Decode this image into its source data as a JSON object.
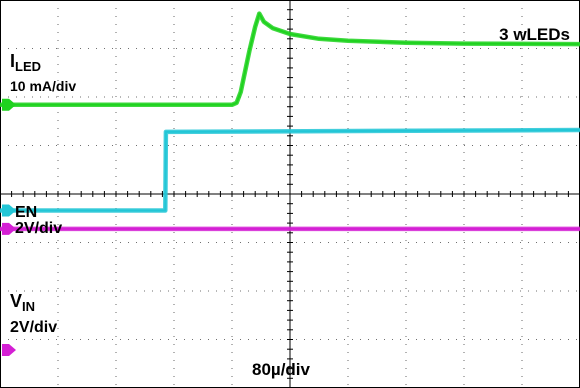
{
  "chart_data": {
    "type": "line",
    "x_unit": "divisions",
    "xlim": [
      0,
      10
    ],
    "ylim": [
      -4,
      4
    ],
    "time_per_div": "80µ/div",
    "grid": true,
    "colors": {
      "iled": "#1fd21f",
      "en": "#22c6d6",
      "vin": "#d41fd4",
      "grid": "#000000"
    },
    "annotations": {
      "load": "3 wLEDs",
      "timebase": "80µ/div"
    },
    "series": [
      {
        "key": "iled",
        "label_main": "I",
        "label_sub": "LED",
        "scale": "10 mA/div",
        "points": [
          [
            0,
            1.84
          ],
          [
            4.0,
            1.84
          ],
          [
            4.08,
            1.88
          ],
          [
            4.15,
            2.1
          ],
          [
            4.3,
            2.95
          ],
          [
            4.4,
            3.45
          ],
          [
            4.47,
            3.72
          ],
          [
            4.55,
            3.55
          ],
          [
            4.7,
            3.42
          ],
          [
            5.0,
            3.3
          ],
          [
            5.5,
            3.2
          ],
          [
            6.0,
            3.16
          ],
          [
            7.0,
            3.12
          ],
          [
            8.0,
            3.1
          ],
          [
            10.0,
            3.09
          ]
        ]
      },
      {
        "key": "en",
        "label_main": "EN",
        "label_sub": "",
        "scale": "2V/div",
        "points": [
          [
            0,
            -0.34
          ],
          [
            2.85,
            -0.34
          ],
          [
            2.86,
            1.28
          ],
          [
            10.0,
            1.32
          ]
        ]
      },
      {
        "key": "vin",
        "label_main": "V",
        "label_sub": "IN",
        "scale": "2V/div",
        "points": [
          [
            0,
            -0.72
          ],
          [
            3.6,
            -0.72
          ],
          [
            3.9,
            -0.72
          ],
          [
            4.1,
            -0.72
          ],
          [
            4.5,
            -0.72
          ],
          [
            10.0,
            -0.72
          ]
        ]
      }
    ]
  }
}
